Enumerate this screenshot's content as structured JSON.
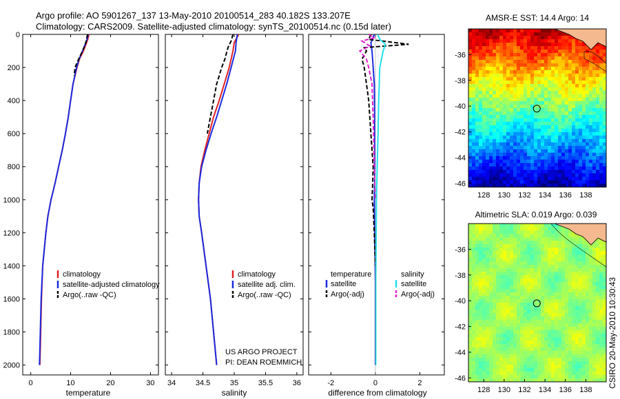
{
  "header": {
    "line1": "Argo profile: AO 5901267_137 13-May-2010 20100514_283 40.182S 133.207E",
    "line2": "Climatology: CARS2009. Satellite-adjusted climatology: synTS_20100514.nc (0.15d later)"
  },
  "colors": {
    "climatology": "#e02020",
    "satellite": "#1a2ae0",
    "argo": "#000000",
    "sat_salinity": "#20e0e8",
    "argo_salinity": "#e020d0"
  },
  "chart_data": [
    {
      "type": "line",
      "name": "temperature-profile",
      "xlabel": "temperature",
      "xlim": [
        -2,
        32
      ],
      "ylim": [
        2060,
        0
      ],
      "xticks": [
        "0",
        "10",
        "20",
        "30"
      ],
      "yticks": [
        "0",
        "200",
        "400",
        "600",
        "800",
        "1000",
        "1200",
        "1400",
        "1600",
        "1800",
        "2000"
      ],
      "series": [
        {
          "name": "climatology",
          "depth": [
            0,
            30,
            100,
            150,
            200,
            300,
            400,
            500,
            600,
            700,
            800,
            900,
            1000,
            1100,
            1200,
            1400,
            1600,
            1800,
            2000
          ],
          "values": [
            14.6,
            14.3,
            13.2,
            12.2,
            11.6,
            10.6,
            10.0,
            9.4,
            8.7,
            7.9,
            7.0,
            6.1,
            5.1,
            4.3,
            3.8,
            3.0,
            2.7,
            2.5,
            2.3
          ]
        },
        {
          "name": "satellite-adjusted climatology",
          "depth": [
            0,
            30,
            100,
            150,
            200,
            300,
            400,
            500,
            600,
            700,
            800,
            900,
            1000,
            1100,
            1200,
            1400,
            1600,
            1800,
            2000
          ],
          "values": [
            14.4,
            14.1,
            13.0,
            12.1,
            11.5,
            10.6,
            10.0,
            9.4,
            8.7,
            7.9,
            7.0,
            6.1,
            5.1,
            4.3,
            3.8,
            3.0,
            2.6,
            2.4,
            2.2
          ]
        },
        {
          "name": "Argo(..raw -QC)",
          "depth": [
            0,
            30,
            60,
            100,
            150,
            200,
            250
          ],
          "values": [
            14.2,
            14.0,
            13.7,
            13.0,
            12.0,
            11.1,
            10.9
          ]
        }
      ],
      "legend": [
        "climatology",
        "satellite-adjusted climatology",
        "Argo(..raw -QC)"
      ]
    },
    {
      "type": "line",
      "name": "salinity-profile",
      "xlabel": "salinity",
      "xlim": [
        33.9,
        36.1
      ],
      "ylim": [
        2060,
        0
      ],
      "xticks": [
        "34",
        "34.5",
        "35",
        "35.5",
        "36"
      ],
      "series": [
        {
          "name": "climatology",
          "depth": [
            0,
            50,
            100,
            200,
            300,
            400,
            500,
            600,
            700,
            800,
            900,
            1000,
            1100,
            1200,
            1400,
            1600,
            1800,
            2000
          ],
          "values": [
            35.07,
            35.0,
            34.98,
            34.92,
            34.84,
            34.76,
            34.67,
            34.6,
            34.53,
            34.47,
            34.44,
            34.43,
            34.44,
            34.48,
            34.55,
            34.62,
            34.67,
            34.72
          ]
        },
        {
          "name": "satellite adj. clim.",
          "depth": [
            0,
            50,
            100,
            200,
            300,
            400,
            500,
            600,
            700,
            800,
            900,
            1000,
            1100,
            1200,
            1400,
            1600,
            1800,
            2000
          ],
          "values": [
            35.05,
            35.03,
            35.02,
            34.95,
            34.88,
            34.8,
            34.72,
            34.63,
            34.55,
            34.48,
            34.44,
            34.43,
            34.44,
            34.48,
            34.55,
            34.62,
            34.67,
            34.72
          ]
        },
        {
          "name": "Argo(..raw -QC)",
          "depth": [
            0,
            40,
            80,
            150,
            200,
            250,
            300,
            400,
            500,
            600
          ],
          "values": [
            34.98,
            34.95,
            34.9,
            34.85,
            34.8,
            34.76,
            34.72,
            34.67,
            34.62,
            34.57
          ]
        }
      ],
      "legend": [
        "climatology",
        "satellite adj. clim.",
        "Argo(..raw -QC)"
      ],
      "annotation": [
        "US ARGO PROJECT",
        "PI: DEAN ROEMMICH"
      ]
    },
    {
      "type": "line",
      "name": "difference-profile",
      "xlabel": "difference from climatology",
      "xlim": [
        -3,
        3.1
      ],
      "ylim": [
        2060,
        0
      ],
      "xticks": [
        "-2",
        "0",
        "2"
      ],
      "series": [
        {
          "name": "temperature satellite",
          "depth": [
            0,
            20,
            50,
            100,
            200,
            300,
            500,
            800,
            1000,
            1200,
            1500,
            2000
          ],
          "values": [
            -0.05,
            -0.1,
            -0.2,
            -0.15,
            -0.1,
            -0.05,
            -0.03,
            -0.02,
            -0.05,
            -0.03,
            0.0,
            0.0
          ]
        },
        {
          "name": "temperature Argo(-adj)",
          "depth": [
            0,
            30,
            60,
            80,
            100,
            150,
            200,
            300,
            400,
            500,
            600,
            700,
            800,
            900,
            1000,
            1050,
            1200,
            1400
          ],
          "values": [
            -0.2,
            -0.3,
            1.5,
            -0.5,
            -0.4,
            -0.6,
            -0.5,
            -0.4,
            -0.3,
            -0.25,
            -0.2,
            -0.15,
            -0.1,
            -0.12,
            -0.15,
            -0.1,
            -0.05,
            0.0
          ]
        },
        {
          "name": "salinity satellite",
          "depth": [
            0,
            30,
            60,
            100,
            200,
            400,
            600,
            800,
            1000,
            1500,
            2000
          ],
          "values": [
            0.1,
            0.2,
            0.45,
            0.35,
            0.2,
            0.15,
            0.12,
            0.08,
            0.05,
            0.02,
            0.02
          ]
        },
        {
          "name": "salinity Argo(-adj)",
          "depth": [
            0,
            20,
            40,
            70,
            100,
            150,
            200,
            300,
            500,
            800,
            1000
          ],
          "values": [
            -0.3,
            -0.05,
            -0.6,
            -0.25,
            -0.7,
            -0.4,
            -0.3,
            -0.15,
            -0.1,
            -0.05,
            0.0
          ]
        }
      ],
      "legend_left": {
        "title": "temperature",
        "items": [
          "satellite",
          "Argo(-adj)"
        ]
      },
      "legend_right": {
        "title": "salinity",
        "items": [
          "satellite",
          "Argo(-adj)"
        ]
      }
    },
    {
      "type": "heatmap",
      "name": "sst-map",
      "title": "AMSR-E SST: 14.4 Argo: 14",
      "xticks": [
        "128",
        "130",
        "132",
        "134",
        "136",
        "138"
      ],
      "yticks": [
        "-36",
        "-38",
        "-40",
        "-42",
        "-44",
        "-46"
      ],
      "xlim": [
        126.5,
        140
      ],
      "ylim": [
        -46.3,
        -34
      ],
      "argo_position": {
        "lon": 133.2,
        "lat": -40.2
      }
    },
    {
      "type": "heatmap",
      "name": "sla-map",
      "title": "Altimetric SLA: 0.019 Argo: 0.039",
      "xticks": [
        "128",
        "130",
        "132",
        "134",
        "136",
        "138"
      ],
      "yticks": [
        "-36",
        "-38",
        "-40",
        "-42",
        "-44",
        "-46"
      ],
      "xlim": [
        126.5,
        140
      ],
      "ylim": [
        -46.3,
        -34
      ],
      "argo_position": {
        "lon": 133.2,
        "lat": -40.2
      }
    }
  ],
  "footer": {
    "credit": "CSIRO 20-May-2010 10:30:43"
  }
}
